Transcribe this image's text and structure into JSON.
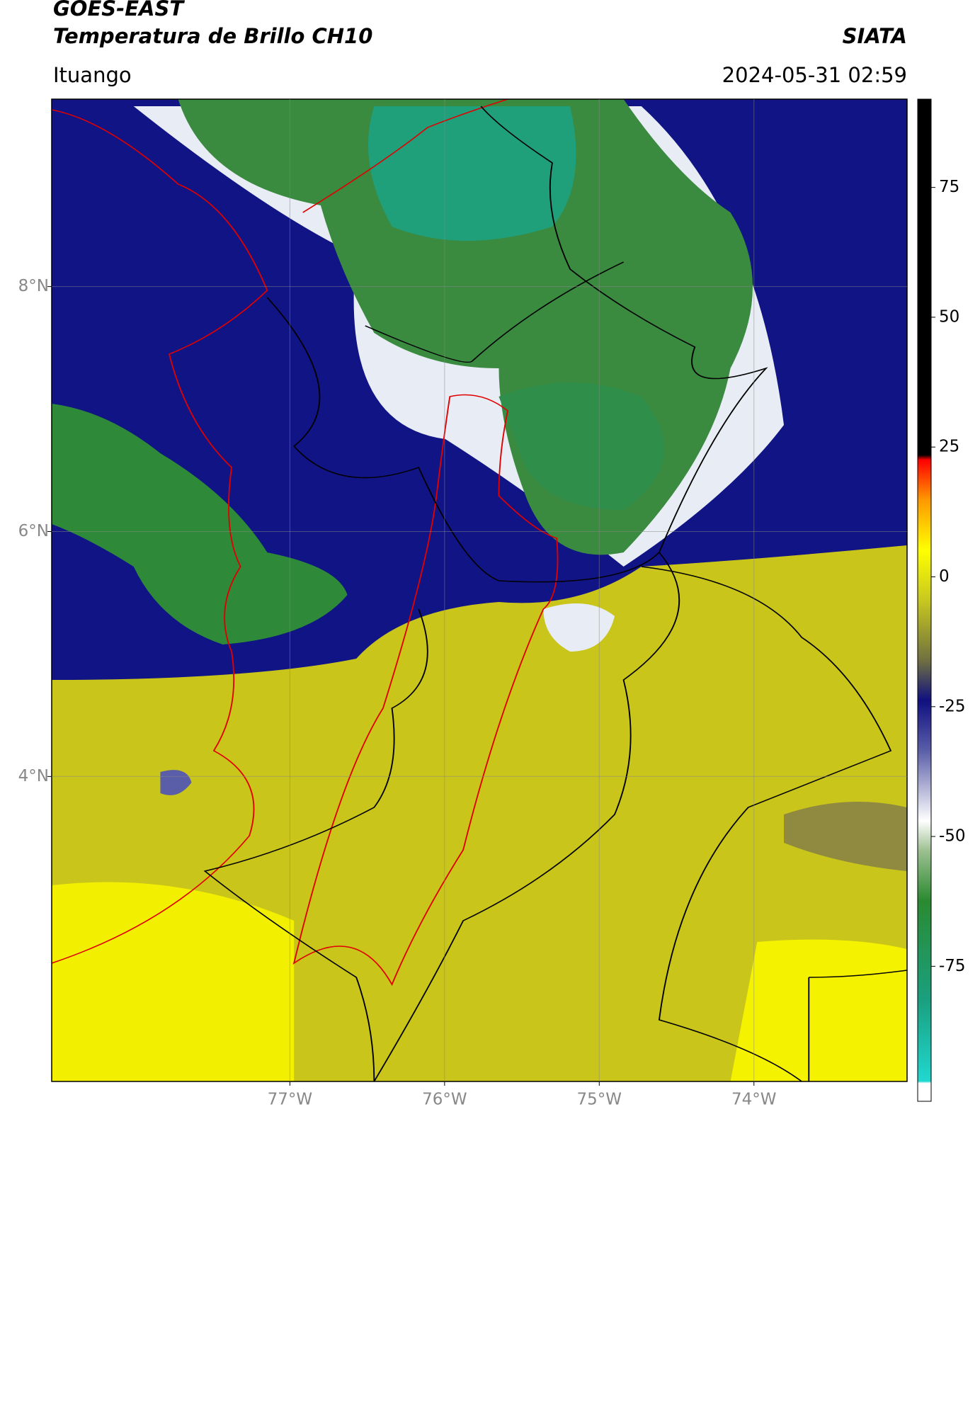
{
  "map": {
    "title": "GOES-EAST",
    "subtitle": "Temperatura de Brillo CH10",
    "source": "SIATA",
    "location": "Ituango",
    "datetime": "2024-05-31 02:59",
    "xlim": [
      -78.54,
      -73.01
    ],
    "ylim": [
      1.51,
      9.53
    ],
    "xticks": [
      {
        "value": -77,
        "label": "77°W"
      },
      {
        "value": -76,
        "label": "76°W"
      },
      {
        "value": -75,
        "label": "75°W"
      },
      {
        "value": -74,
        "label": "74°W"
      }
    ],
    "yticks": [
      {
        "value": 8,
        "label": "8°N"
      },
      {
        "value": 6,
        "label": "6°N"
      },
      {
        "value": 4,
        "label": "4°N"
      }
    ],
    "colorbar": {
      "lim": [
        -101,
        92
      ],
      "ticks": [
        75,
        50,
        25,
        0,
        -25,
        -50,
        -75
      ]
    }
  }
}
